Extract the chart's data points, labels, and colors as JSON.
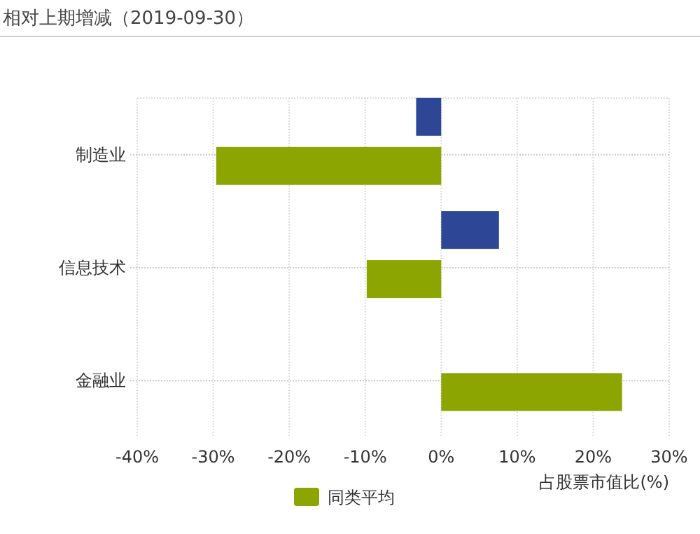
{
  "chart_data": {
    "type": "bar",
    "orientation": "horizontal",
    "title": "相对上期增减（2019-09-30）",
    "xlabel": "占股票市值比(%)",
    "categories": [
      "制造业",
      "信息技术",
      "金融业"
    ],
    "series": [
      {
        "color": "#2e4696",
        "values": [
          -3.3,
          7.6,
          null
        ]
      },
      {
        "name": "同类平均",
        "color": "#8ca500",
        "values": [
          -29.6,
          -9.8,
          23.8
        ]
      }
    ],
    "xlim": [
      -40,
      30
    ],
    "xticks": [
      {
        "value": -40,
        "label": "-40%"
      },
      {
        "value": -30,
        "label": "-30%"
      },
      {
        "value": -20,
        "label": "-20%"
      },
      {
        "value": -10,
        "label": "-10%"
      },
      {
        "value": 0,
        "label": "0%"
      },
      {
        "value": 10,
        "label": "10%"
      },
      {
        "value": 20,
        "label": "20%"
      },
      {
        "value": 30,
        "label": "30%"
      }
    ],
    "grid": true,
    "legend": "bottom"
  }
}
